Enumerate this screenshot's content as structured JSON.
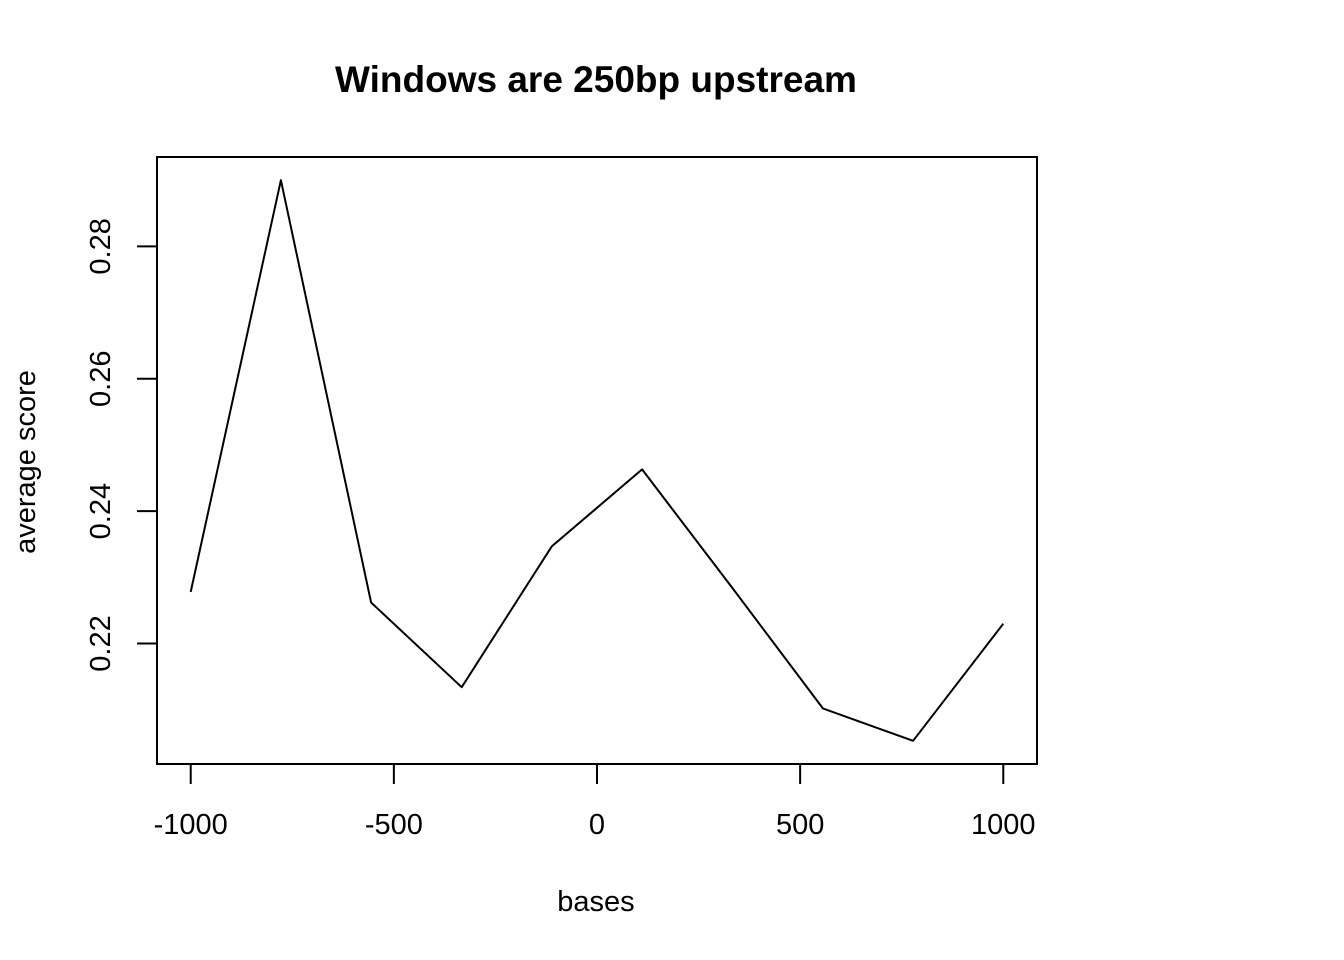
{
  "chart_data": {
    "type": "line",
    "title": "Windows are 250bp upstream",
    "xlabel": "bases",
    "ylabel": "average score",
    "xlim": [
      -1083,
      1083
    ],
    "ylim": [
      0.2018,
      0.2935
    ],
    "x_ticks": [
      -1000,
      -500,
      0,
      500,
      1000
    ],
    "y_ticks": [
      0.22,
      0.24,
      0.26,
      0.28
    ],
    "x_tick_labels": [
      "-1000",
      "-500",
      "0",
      "500",
      "1000"
    ],
    "y_tick_labels": [
      "0.22",
      "0.24",
      "0.26",
      "0.28"
    ],
    "grid": false,
    "legend": "none",
    "series": [
      {
        "x": [
          -1000,
          -778,
          -556,
          -333,
          -111,
          111,
          333,
          556,
          778,
          1000
        ],
        "y": [
          0.2278,
          0.29,
          0.2262,
          0.2134,
          0.2347,
          0.2463,
          0.2284,
          0.2102,
          0.2053,
          0.223
        ],
        "color": "#000000"
      }
    ]
  }
}
